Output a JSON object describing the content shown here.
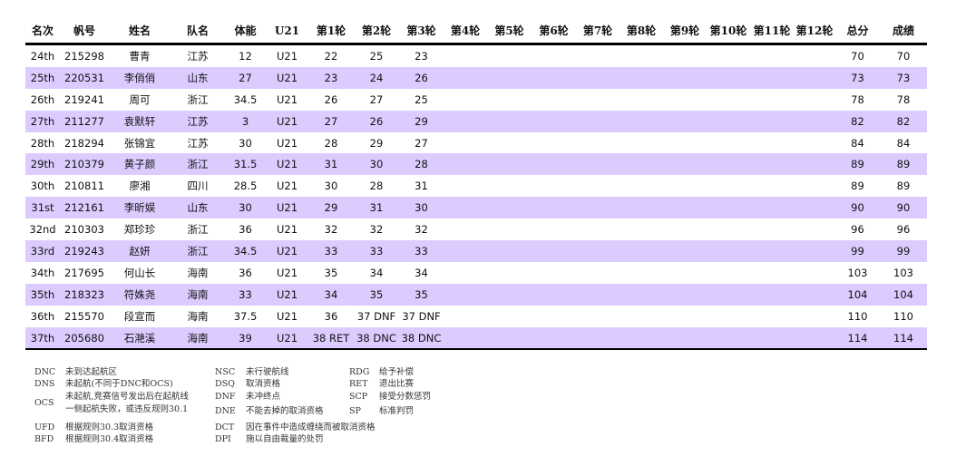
{
  "headers": [
    "名次",
    "帆号",
    "姓名",
    "队名",
    "体能",
    "U21",
    "第1轮",
    "第2轮",
    "第3轮",
    "第4轮",
    "第5轮",
    "第6轮",
    "第7轮",
    "第8轮",
    "第9轮",
    "第10轮",
    "第11轮",
    "第12轮",
    "总分",
    "成绩"
  ],
  "rows": [
    [
      "24th",
      "215298",
      "曹青",
      "江苏",
      "12",
      "U21",
      "22",
      "25",
      "23",
      "",
      "",
      "",
      "",
      "",
      "",
      "",
      "",
      "",
      "70",
      "70"
    ],
    [
      "25th",
      "220531",
      "李俏俏",
      "山东",
      "27",
      "U21",
      "23",
      "24",
      "26",
      "",
      "",
      "",
      "",
      "",
      "",
      "",
      "",
      "",
      "73",
      "73"
    ],
    [
      "26th",
      "219241",
      "周可",
      "浙江",
      "34.5",
      "U21",
      "26",
      "27",
      "25",
      "",
      "",
      "",
      "",
      "",
      "",
      "",
      "",
      "",
      "78",
      "78"
    ],
    [
      "27th",
      "211277",
      "袁默轩",
      "江苏",
      "3",
      "U21",
      "27",
      "26",
      "29",
      "",
      "",
      "",
      "",
      "",
      "",
      "",
      "",
      "",
      "82",
      "82"
    ],
    [
      "28th",
      "218294",
      "张锦宜",
      "江苏",
      "30",
      "U21",
      "28",
      "29",
      "27",
      "",
      "",
      "",
      "",
      "",
      "",
      "",
      "",
      "",
      "84",
      "84"
    ],
    [
      "29th",
      "210379",
      "黄子颜",
      "浙江",
      "31.5",
      "U21",
      "31",
      "30",
      "28",
      "",
      "",
      "",
      "",
      "",
      "",
      "",
      "",
      "",
      "89",
      "89"
    ],
    [
      "30th",
      "210811",
      "廖湘",
      "四川",
      "28.5",
      "U21",
      "30",
      "28",
      "31",
      "",
      "",
      "",
      "",
      "",
      "",
      "",
      "",
      "",
      "89",
      "89"
    ],
    [
      "31st",
      "212161",
      "李昕娱",
      "山东",
      "30",
      "U21",
      "29",
      "31",
      "30",
      "",
      "",
      "",
      "",
      "",
      "",
      "",
      "",
      "",
      "90",
      "90"
    ],
    [
      "32nd",
      "210303",
      "郑珍珍",
      "浙江",
      "36",
      "U21",
      "32",
      "32",
      "32",
      "",
      "",
      "",
      "",
      "",
      "",
      "",
      "",
      "",
      "96",
      "96"
    ],
    [
      "33rd",
      "219243",
      "赵妍",
      "浙江",
      "34.5",
      "U21",
      "33",
      "33",
      "33",
      "",
      "",
      "",
      "",
      "",
      "",
      "",
      "",
      "",
      "99",
      "99"
    ],
    [
      "34th",
      "217695",
      "何山长",
      "海南",
      "36",
      "U21",
      "35",
      "34",
      "34",
      "",
      "",
      "",
      "",
      "",
      "",
      "",
      "",
      "",
      "103",
      "103"
    ],
    [
      "35th",
      "218323",
      "符姝尧",
      "海南",
      "33",
      "U21",
      "34",
      "35",
      "35",
      "",
      "",
      "",
      "",
      "",
      "",
      "",
      "",
      "",
      "104",
      "104"
    ],
    [
      "36th",
      "215570",
      "段宣而",
      "海南",
      "37.5",
      "U21",
      "36",
      "37 DNF",
      "37 DNF",
      "",
      "",
      "",
      "",
      "",
      "",
      "",
      "",
      "",
      "110",
      "110"
    ],
    [
      "37th",
      "205680",
      "石滟溪",
      "海南",
      "39",
      "U21",
      "38 RET",
      "38 DNC",
      "38 DNC",
      "",
      "",
      "",
      "",
      "",
      "",
      "",
      "",
      "",
      "114",
      "114"
    ]
  ],
  "row_highlight_color": "#dccbff",
  "legend": [
    {
      "code": "DNC",
      "text": "未到达起航区"
    },
    {
      "code": "DNS",
      "text": "未起航(不同于DNC和OCS)"
    },
    {
      "code": "OCS",
      "text": "未起航,竞赛信号发出后在起航线",
      "text2": "一侧起航失败，或违反规则30.1"
    },
    {
      "code": "UFD",
      "text": "根据规则30.3取消资格"
    },
    {
      "code": "BFD",
      "text": "根据规则30.4取消资格"
    },
    {
      "code": "NSC",
      "text": "未行驶航线"
    },
    {
      "code": "DSQ",
      "text": "取消资格"
    },
    {
      "code": "DNF",
      "text": "未冲终点"
    },
    {
      "code": "DNE",
      "text": "不能去掉的取消资格"
    },
    {
      "code": "DCT",
      "text": "因在事件中造成缠绕而被取消资格"
    },
    {
      "code": "DPI",
      "text": "施以自由裁量的处罚"
    },
    {
      "code": "RDG",
      "text": "给予补偿"
    },
    {
      "code": "RET",
      "text": "退出比赛"
    },
    {
      "code": "SCP",
      "text": "接受分数惩罚"
    },
    {
      "code": "SP",
      "text": "标准判罚"
    }
  ]
}
